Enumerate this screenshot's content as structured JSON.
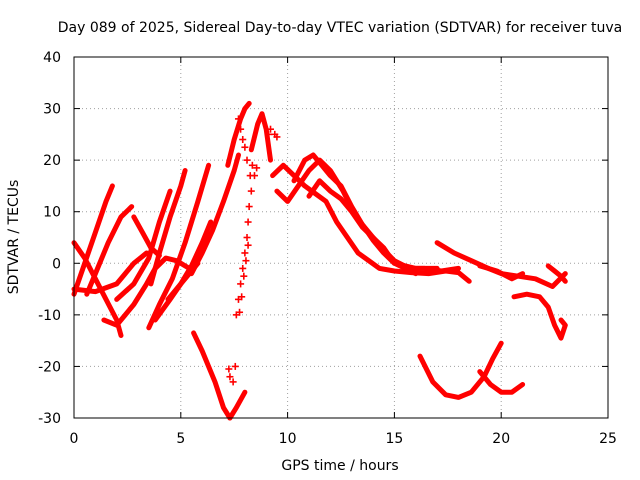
{
  "chart_data": {
    "type": "scatter",
    "title": "Day 089 of 2025, Sidereal Day-to-day VTEC variation (SDTVAR) for receiver tuva",
    "xlabel": "GPS time / hours",
    "ylabel": "SDTVAR / TECUs",
    "xlim": [
      0,
      25
    ],
    "ylim": [
      -30,
      40
    ],
    "xticks": [
      0,
      5,
      10,
      15,
      20,
      25
    ],
    "yticks": [
      -30,
      -20,
      -10,
      0,
      10,
      20,
      30,
      40
    ],
    "x_tick_labels": [
      "0",
      "5",
      "10",
      "15",
      "20",
      "25"
    ],
    "y_tick_labels": [
      "-30",
      "-20",
      "-10",
      "0",
      "10",
      "20",
      "30",
      "40"
    ],
    "grid": true,
    "marker": "+",
    "color": "#ff0000",
    "series": [
      {
        "name": "arc1",
        "x": [
          0.0,
          0.5,
          1.0,
          1.5,
          1.8
        ],
        "y": [
          -6.0,
          0.0,
          6.0,
          12.0,
          15.0
        ]
      },
      {
        "name": "arc2",
        "x": [
          0.0,
          0.5,
          1.0,
          1.5,
          2.0,
          2.2
        ],
        "y": [
          4.0,
          1.0,
          -3.0,
          -7.0,
          -11.0,
          -14.0
        ]
      },
      {
        "name": "arc3",
        "x": [
          0.0,
          1.0,
          2.0,
          2.8,
          3.4
        ],
        "y": [
          -5.0,
          -5.5,
          -4.0,
          0.0,
          2.0
        ]
      },
      {
        "name": "arc4",
        "x": [
          0.6,
          1.0,
          1.6,
          2.2,
          2.7
        ],
        "y": [
          -6.0,
          -2.0,
          4.0,
          9.0,
          11.0
        ]
      },
      {
        "name": "arc5",
        "x": [
          1.4,
          2.0,
          2.8,
          3.4,
          3.8,
          4.3,
          4.8,
          5.4
        ],
        "y": [
          -11.0,
          -12.0,
          -8.0,
          -4.0,
          -1.0,
          1.0,
          0.5,
          -1.0
        ]
      },
      {
        "name": "arc6",
        "x": [
          2.8,
          3.2,
          3.6,
          4.0
        ],
        "y": [
          9.0,
          6.0,
          3.0,
          1.5
        ]
      },
      {
        "name": "arc7",
        "x": [
          2.0,
          2.8,
          3.5,
          4.0,
          4.5
        ],
        "y": [
          -7.0,
          -4.0,
          1.0,
          8.0,
          14.0
        ]
      },
      {
        "name": "arc8",
        "x": [
          3.5,
          4.0,
          4.6,
          5.2,
          5.8,
          6.3
        ],
        "y": [
          -12.5,
          -8.0,
          -3.0,
          4.0,
          12.0,
          19.0
        ]
      },
      {
        "name": "arc9",
        "x": [
          3.6,
          4.0,
          4.5,
          5.0,
          5.2
        ],
        "y": [
          -4.0,
          2.0,
          9.0,
          15.0,
          18.0
        ]
      },
      {
        "name": "arc10",
        "x": [
          3.8,
          4.5,
          5.0,
          5.5,
          5.8
        ],
        "y": [
          -11.0,
          -7.0,
          -4.0,
          -1.5,
          0.0
        ]
      },
      {
        "name": "arc11",
        "x": [
          4.4,
          5.0,
          5.5,
          6.0,
          6.4
        ],
        "y": [
          -7.0,
          -4.0,
          -0.5,
          4.0,
          8.0
        ]
      },
      {
        "name": "arc12",
        "x": [
          5.5,
          6.0,
          6.5,
          7.0,
          7.5,
          7.7
        ],
        "y": [
          -2.0,
          2.0,
          6.5,
          12.0,
          18.0,
          21.0
        ]
      },
      {
        "name": "arc13",
        "x": [
          5.6,
          6.0,
          6.6,
          7.0,
          7.3
        ],
        "y": [
          -13.5,
          -17.0,
          -23.0,
          -28.0,
          -30.0
        ]
      },
      {
        "name": "arc14",
        "x": [
          7.3,
          7.6,
          8.0
        ],
        "y": [
          -30.0,
          -28.0,
          -25.0
        ]
      },
      {
        "name": "arc15",
        "x": [
          7.2,
          7.5,
          7.8,
          8.0,
          8.2
        ],
        "y": [
          19.0,
          24.0,
          28.0,
          30.0,
          31.0
        ]
      },
      {
        "name": "arc16",
        "x": [
          8.3,
          8.6,
          8.8,
          9.0,
          9.2
        ],
        "y": [
          22.0,
          27.0,
          29.0,
          26.0,
          20.0
        ]
      },
      {
        "name": "arc17",
        "x": [
          9.3,
          9.8,
          10.3,
          10.8,
          11.3,
          11.8,
          12.3,
          12.8,
          13.3,
          13.8,
          14.3,
          15.0,
          15.8,
          16.6,
          17.4,
          18.0,
          18.5
        ],
        "y": [
          17.0,
          19.0,
          17.0,
          15.0,
          13.5,
          12.0,
          8.0,
          5.0,
          2.0,
          0.5,
          -1.0,
          -1.5,
          -1.8,
          -2.0,
          -1.5,
          -1.8,
          -3.5
        ]
      },
      {
        "name": "arc18",
        "x": [
          9.5,
          10.0,
          10.5,
          11.0,
          11.5,
          12.0,
          12.6,
          13.2,
          13.8,
          14.4,
          15.0,
          15.7,
          16.4,
          17.2,
          18.0
        ],
        "y": [
          14.0,
          12.0,
          15.0,
          18.0,
          20.0,
          18.0,
          14.0,
          9.0,
          6.0,
          3.0,
          0.5,
          -1.0,
          -1.0,
          -1.5,
          -1.0
        ]
      },
      {
        "name": "arc19",
        "x": [
          10.3,
          10.8,
          11.2,
          11.6,
          12.0,
          12.5,
          13.0,
          13.5,
          14.0,
          14.5,
          15.0,
          16.0,
          17.0
        ],
        "y": [
          16.0,
          20.0,
          21.0,
          19.0,
          17.0,
          15.0,
          11.0,
          7.5,
          4.5,
          2.0,
          0.0,
          -1.0,
          -1.0
        ]
      },
      {
        "name": "arc20",
        "x": [
          11.0,
          11.5,
          12.0,
          12.5,
          13.0,
          13.5,
          14.0,
          14.5,
          15.0,
          15.5,
          16.0
        ],
        "y": [
          13.0,
          16.0,
          14.0,
          12.5,
          10.0,
          7.0,
          5.0,
          3.0,
          0.0,
          -1.0,
          -2.0
        ]
      },
      {
        "name": "arc21",
        "x": [
          16.2,
          16.8,
          17.4,
          18.0,
          18.6,
          19.2,
          19.6,
          20.0
        ],
        "y": [
          -18.0,
          -23.0,
          -25.5,
          -26.0,
          -25.0,
          -22.0,
          -18.5,
          -15.5
        ]
      },
      {
        "name": "arc22",
        "x": [
          19.0,
          19.5,
          20.0,
          20.5,
          21.0
        ],
        "y": [
          -21.0,
          -23.5,
          -25.0,
          -25.0,
          -23.5
        ]
      },
      {
        "name": "arc23",
        "x": [
          17.0,
          17.8,
          18.6,
          19.4,
          20.0,
          20.8,
          21.6,
          22.4,
          23.0
        ],
        "y": [
          4.0,
          2.0,
          0.5,
          -1.0,
          -2.0,
          -2.5,
          -3.0,
          -4.5,
          -2.0
        ]
      },
      {
        "name": "arc24",
        "x": [
          19.0,
          19.8,
          20.5,
          21.0
        ],
        "y": [
          -0.5,
          -1.5,
          -3.0,
          -2.0
        ]
      },
      {
        "name": "arc25",
        "x": [
          22.2,
          22.5,
          22.8,
          23.0
        ],
        "y": [
          -0.5,
          -1.5,
          -2.5,
          -3.5
        ]
      },
      {
        "name": "arc26",
        "x": [
          20.6,
          21.2,
          21.8,
          22.2,
          22.5,
          22.8,
          23.0,
          22.8
        ],
        "y": [
          -6.5,
          -6.0,
          -6.5,
          -8.5,
          -12.0,
          -14.5,
          -12.0,
          -11.0
        ]
      }
    ],
    "sparse_points": [
      {
        "x": [
          7.6,
          7.7,
          7.8,
          7.9,
          8.0,
          8.1,
          8.15,
          8.2,
          8.3,
          8.25,
          8.1,
          8.0,
          7.9,
          7.8,
          7.7,
          7.75,
          7.85,
          7.95,
          8.05,
          8.15,
          8.35,
          8.45,
          8.55,
          9.1,
          9.2,
          9.5,
          9.4,
          7.45,
          7.55,
          7.3,
          7.25
        ],
        "y": [
          -10.0,
          -7.0,
          -4.0,
          -1.0,
          2.0,
          5.0,
          8.0,
          11.0,
          14.0,
          17.0,
          20.0,
          22.5,
          24.0,
          26.0,
          28.0,
          -9.5,
          -6.5,
          -2.5,
          0.5,
          3.5,
          19.0,
          17.0,
          18.5,
          25.0,
          26.0,
          24.5,
          25.0,
          -23.0,
          -20.0,
          -22.0,
          -20.5
        ]
      }
    ]
  }
}
